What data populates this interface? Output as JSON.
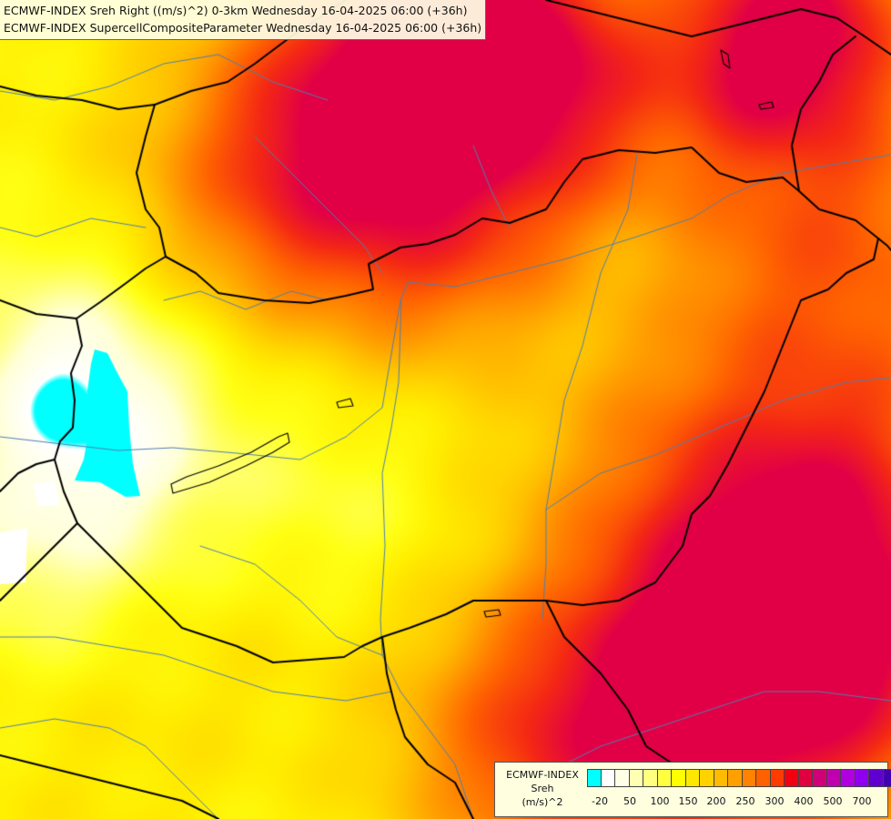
{
  "header": {
    "line1": "ECMWF-INDEX Sreh Right ((m/s)^2) 0-3km Wednesday 16-04-2025 06:00 (+36h)",
    "line2": "ECMWF-INDEX SupercellCompositeParameter Wednesday 16-04-2025 06:00 (+36h)"
  },
  "legend": {
    "title_line1": "ECMWF-INDEX",
    "title_line2": "Sreh",
    "title_line3": "(m/s)^2",
    "colors": [
      "#00ffff",
      "#ffffff",
      "#ffffe6",
      "#ffffb4",
      "#ffff80",
      "#ffff40",
      "#ffff00",
      "#ffe800",
      "#ffd200",
      "#ffbb00",
      "#ffa000",
      "#ff8200",
      "#ff6000",
      "#ff3c00",
      "#f00010",
      "#e00040",
      "#d00078",
      "#c000b0",
      "#b000e0",
      "#9000f0",
      "#6000d0",
      "#4000b0",
      "#200090",
      "#000070"
    ],
    "ticks": [
      "-20",
      "50",
      "100",
      "150",
      "200",
      "250",
      "300",
      "400",
      "500",
      "700"
    ]
  },
  "map": {
    "region": "Hungary and surrounding countries",
    "field": "0-3km storm-relative helicity, right mover",
    "colors": {
      "background": "#fff9a0",
      "border": "#000000",
      "river": "#4f7fb0"
    }
  }
}
